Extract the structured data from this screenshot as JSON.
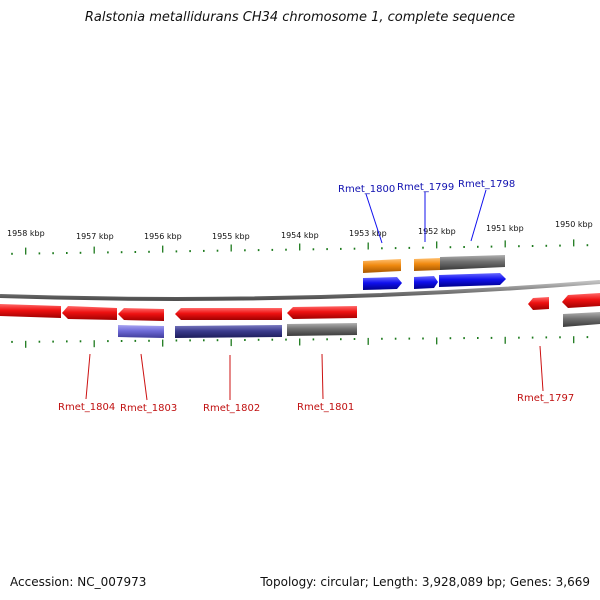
{
  "title": "Ralstonia metallidurans CH34 chromosome 1, complete sequence",
  "accession": "Accession: NC_007973",
  "summary": "Topology: circular; Length: 3,928,089 bp; Genes: 3,669",
  "colors": {
    "red": "#ee1111",
    "blue": "#1010ee",
    "orange": "#f08a10",
    "gray": "#707070",
    "purple": "#6e6ad8",
    "navy": "#3c3c8e",
    "tick": "#1d7a1d",
    "label_blue": "#1010b0",
    "label_red": "#c01010"
  },
  "kbp_labels": [
    {
      "text": "1958 kbp"
    },
    {
      "text": "1957 kbp"
    },
    {
      "text": "1956 kbp"
    },
    {
      "text": "1955 kbp"
    },
    {
      "text": "1954 kbp"
    },
    {
      "text": "1953 kbp"
    },
    {
      "text": "1952 kbp"
    },
    {
      "text": "1951 kbp"
    },
    {
      "text": "1950 kbp"
    }
  ],
  "gene_labels": [
    {
      "text": "Rmet_1800",
      "color": "blue"
    },
    {
      "text": "Rmet_1799",
      "color": "blue"
    },
    {
      "text": "Rmet_1798",
      "color": "blue"
    },
    {
      "text": "Rmet_1804",
      "color": "red"
    },
    {
      "text": "Rmet_1803",
      "color": "red"
    },
    {
      "text": "Rmet_1802",
      "color": "red"
    },
    {
      "text": "Rmet_1801",
      "color": "red"
    },
    {
      "text": "Rmet_1797",
      "color": "red"
    }
  ]
}
